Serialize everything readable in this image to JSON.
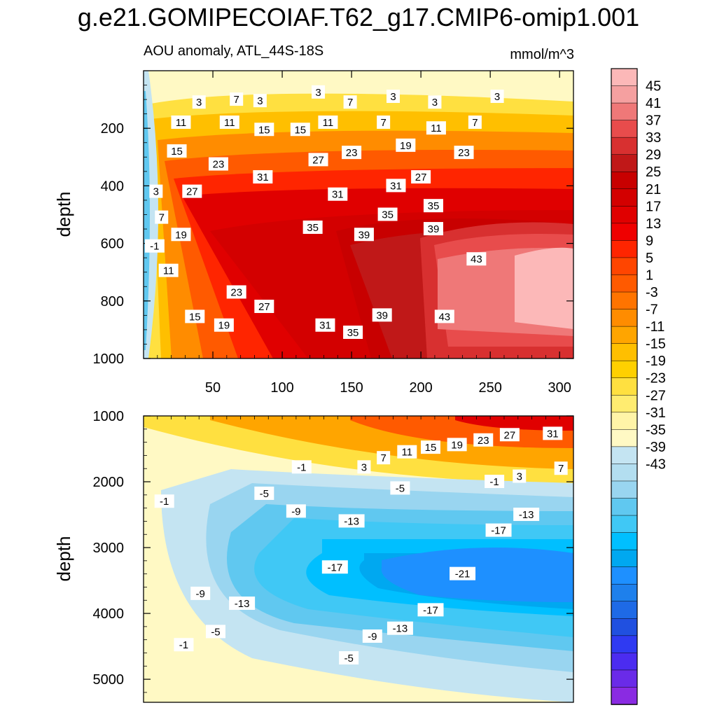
{
  "figure": {
    "title": "g.e21.GOMIPECOIAF.T62_g17.CMIP6-omip1.001",
    "left_subtitle": "AOU anomaly, ATL_44S-18S",
    "right_subtitle": "mmol/m^3"
  },
  "colors": {
    "neg_palette": [
      "#8a2be2",
      "#6a2be8",
      "#4b2cf0",
      "#2f3af2",
      "#2050e0",
      "#1e6ae6",
      "#1e80ec",
      "#1e90ff",
      "#00a8f0",
      "#00bfff",
      "#40c8f5",
      "#60c8f0",
      "#99d5f0",
      "#b3def0",
      "#c4e4f2"
    ],
    "pos_palette": [
      "#fff9c4",
      "#fff4a8",
      "#ffec70",
      "#ffe040",
      "#ffd000",
      "#ffbf00",
      "#ffa500",
      "#ff8c00",
      "#ff7400",
      "#ff5a00",
      "#ff4500",
      "#ff2500",
      "#ef0000",
      "#e00000",
      "#d30000",
      "#c80000",
      "#c01818",
      "#d83030",
      "#e84c4c",
      "#ef7878",
      "#f5a0a0",
      "#fcb8b8"
    ]
  },
  "chart_data": [
    {
      "type": "contour",
      "panel": "upper",
      "xlabel": "",
      "ylabel": "depth",
      "xlim": [
        0,
        310
      ],
      "ylim": [
        1000,
        0
      ],
      "xticks": [
        50,
        100,
        150,
        200,
        250,
        300
      ],
      "yticks": [
        200,
        400,
        600,
        800,
        1000
      ],
      "contour_labels": [
        {
          "text": "3",
          "x": 40,
          "y": 110
        },
        {
          "text": "7",
          "x": 67,
          "y": 100
        },
        {
          "text": "3",
          "x": 84,
          "y": 105
        },
        {
          "text": "3",
          "x": 126,
          "y": 75
        },
        {
          "text": "7",
          "x": 149,
          "y": 110
        },
        {
          "text": "3",
          "x": 180,
          "y": 90
        },
        {
          "text": "3",
          "x": 210,
          "y": 110
        },
        {
          "text": "3",
          "x": 255,
          "y": 90
        },
        {
          "text": "11",
          "x": 27,
          "y": 180
        },
        {
          "text": "11",
          "x": 62,
          "y": 180
        },
        {
          "text": "15",
          "x": 87,
          "y": 205
        },
        {
          "text": "15",
          "x": 113,
          "y": 205
        },
        {
          "text": "11",
          "x": 133,
          "y": 180
        },
        {
          "text": "7",
          "x": 173,
          "y": 180
        },
        {
          "text": "11",
          "x": 211,
          "y": 200
        },
        {
          "text": "7",
          "x": 239,
          "y": 180
        },
        {
          "text": "15",
          "x": 24,
          "y": 280
        },
        {
          "text": "23",
          "x": 54,
          "y": 325
        },
        {
          "text": "27",
          "x": 126,
          "y": 310
        },
        {
          "text": "23",
          "x": 150,
          "y": 285
        },
        {
          "text": "19",
          "x": 189,
          "y": 260
        },
        {
          "text": "23",
          "x": 231,
          "y": 285
        },
        {
          "text": "27",
          "x": 200,
          "y": 370
        },
        {
          "text": "3",
          "x": 9,
          "y": 420
        },
        {
          "text": "27",
          "x": 35,
          "y": 420
        },
        {
          "text": "31",
          "x": 86,
          "y": 370
        },
        {
          "text": "31",
          "x": 140,
          "y": 430
        },
        {
          "text": "31",
          "x": 182,
          "y": 400
        },
        {
          "text": "35",
          "x": 176,
          "y": 500
        },
        {
          "text": "35",
          "x": 209,
          "y": 470
        },
        {
          "text": "7",
          "x": 13,
          "y": 510
        },
        {
          "text": "19",
          "x": 27,
          "y": 570
        },
        {
          "text": "35",
          "x": 122,
          "y": 545
        },
        {
          "text": "39",
          "x": 159,
          "y": 570
        },
        {
          "text": "39",
          "x": 209,
          "y": 550
        },
        {
          "text": "-1",
          "x": 8,
          "y": 610
        },
        {
          "text": "43",
          "x": 240,
          "y": 655
        },
        {
          "text": "11",
          "x": 18,
          "y": 695
        },
        {
          "text": "23",
          "x": 67,
          "y": 770
        },
        {
          "text": "27",
          "x": 87,
          "y": 820
        },
        {
          "text": "39",
          "x": 172,
          "y": 850
        },
        {
          "text": "15",
          "x": 37,
          "y": 855
        },
        {
          "text": "19",
          "x": 58,
          "y": 885
        },
        {
          "text": "31",
          "x": 131,
          "y": 885
        },
        {
          "text": "35",
          "x": 151,
          "y": 910
        },
        {
          "text": "43",
          "x": 217,
          "y": 855
        }
      ]
    },
    {
      "type": "contour",
      "panel": "lower",
      "xlabel": "",
      "ylabel": "depth",
      "xlim": [
        0,
        310
      ],
      "ylim": [
        5350,
        1000
      ],
      "yticks": [
        1000,
        2000,
        3000,
        4000,
        5000
      ],
      "contour_labels": [
        {
          "text": "31",
          "x": 295,
          "y": 1270
        },
        {
          "text": "27",
          "x": 264,
          "y": 1290
        },
        {
          "text": "23",
          "x": 245,
          "y": 1370
        },
        {
          "text": "19",
          "x": 226,
          "y": 1440
        },
        {
          "text": "15",
          "x": 207,
          "y": 1480
        },
        {
          "text": "11",
          "x": 190,
          "y": 1550
        },
        {
          "text": "7",
          "x": 173,
          "y": 1640
        },
        {
          "text": "3",
          "x": 159,
          "y": 1780
        },
        {
          "text": "-1",
          "x": 114,
          "y": 1780
        },
        {
          "text": "7",
          "x": 301,
          "y": 1800
        },
        {
          "text": "3",
          "x": 271,
          "y": 1920
        },
        {
          "text": "-1",
          "x": 253,
          "y": 2000
        },
        {
          "text": "-5",
          "x": 87,
          "y": 2180
        },
        {
          "text": "-5",
          "x": 185,
          "y": 2100
        },
        {
          "text": "-1",
          "x": 15,
          "y": 2300
        },
        {
          "text": "-9",
          "x": 110,
          "y": 2450
        },
        {
          "text": "-13",
          "x": 150,
          "y": 2600
        },
        {
          "text": "-13",
          "x": 276,
          "y": 2500
        },
        {
          "text": "-17",
          "x": 256,
          "y": 2740
        },
        {
          "text": "-17",
          "x": 138,
          "y": 3300
        },
        {
          "text": "-21",
          "x": 230,
          "y": 3400
        },
        {
          "text": "-9",
          "x": 41,
          "y": 3700
        },
        {
          "text": "-13",
          "x": 71,
          "y": 3850
        },
        {
          "text": "-17",
          "x": 207,
          "y": 3950
        },
        {
          "text": "-13",
          "x": 185,
          "y": 4230
        },
        {
          "text": "-9",
          "x": 165,
          "y": 4350
        },
        {
          "text": "-5",
          "x": 52,
          "y": 4280
        },
        {
          "text": "-1",
          "x": 29,
          "y": 4480
        },
        {
          "text": "-5",
          "x": 148,
          "y": 4680
        }
      ]
    },
    {
      "type": "colorbar",
      "tick_labels": [
        "45",
        "41",
        "37",
        "33",
        "29",
        "25",
        "21",
        "17",
        "13",
        "9",
        "5",
        "1",
        "-3",
        "-7",
        "-11",
        "-15",
        "-19",
        "-23",
        "-27",
        "-31",
        "-35",
        "-39",
        "-43"
      ]
    }
  ]
}
